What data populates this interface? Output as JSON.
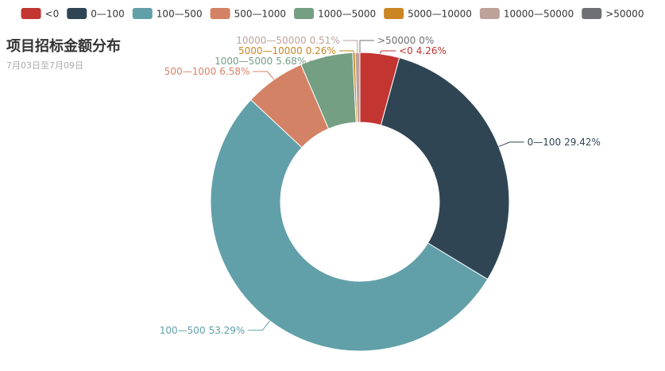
{
  "chart_data": {
    "type": "pie",
    "title": "项目招标金额分布",
    "subtitle": "7月03日至7月09日",
    "categories": [
      "<0",
      "0—100",
      "100—500",
      "500—1000",
      "1000—5000",
      "5000—10000",
      "10000—50000",
      ">50000"
    ],
    "values": [
      4.26,
      29.42,
      53.29,
      6.58,
      5.68,
      0.26,
      0.51,
      0
    ],
    "value_labels": [
      "4.26%",
      "29.42%",
      "53.29%",
      "6.58%",
      "5.68%",
      "0.26%",
      "0.51%",
      "0%"
    ],
    "colors": [
      "#c23531",
      "#2f4554",
      "#61a0a8",
      "#d48265",
      "#749f83",
      "#ca8622",
      "#bda29a",
      "#6e7074"
    ],
    "legend": "top"
  }
}
